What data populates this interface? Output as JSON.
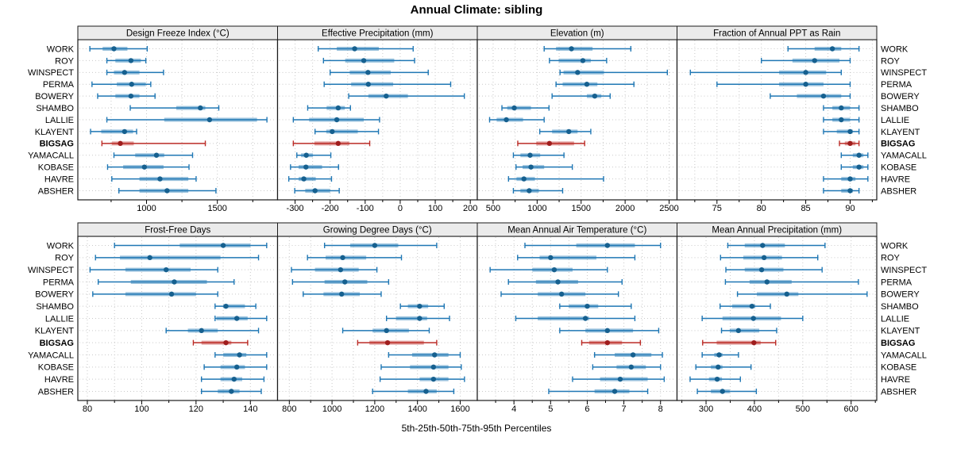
{
  "title": "Annual Climate: sibling",
  "axis_label": "5th-25th-50th-75th-95th Percentiles",
  "colors": {
    "normal": "#1f77b4",
    "normal_dot": "#16608f",
    "highlight": "#bb2b26",
    "highlight_dot": "#9f1d1d",
    "band_opacity": 0.45,
    "header_bg": "#ebebeb",
    "grid": "#c9c9c9",
    "border": "#1a1a1a"
  },
  "chart_data": {
    "type": "dotplot-percentile-trellis",
    "percentiles": [
      5,
      25,
      50,
      75,
      95
    ],
    "stations": [
      "WORK",
      "ROY",
      "WINSPECT",
      "PERMA",
      "BOWERY",
      "SHAMBO",
      "LALLIE",
      "KLAYENT",
      "BIGSAG",
      "YAMACALL",
      "KOBASE",
      "HAVRE",
      "ABSHER"
    ],
    "highlight_station": "BIGSAG",
    "layout_hints": {
      "grid": "dotted",
      "legend": "none",
      "rows": 2,
      "cols": 4
    },
    "panels": [
      {
        "title": "Design Freeze Index (°C)",
        "xmin": 515,
        "xmax": 1925,
        "major_ticks": [
          1000,
          1500
        ],
        "values": [
          [
            600,
            690,
            770,
            865,
            1005
          ],
          [
            720,
            780,
            890,
            960,
            995
          ],
          [
            720,
            770,
            845,
            950,
            1120
          ],
          [
            615,
            790,
            895,
            995,
            1030
          ],
          [
            655,
            780,
            890,
            950,
            1060
          ],
          [
            885,
            1210,
            1380,
            1415,
            1510
          ],
          [
            720,
            1125,
            1445,
            1780,
            1850
          ],
          [
            605,
            680,
            845,
            905,
            930
          ],
          [
            685,
            755,
            815,
            910,
            1415
          ],
          [
            770,
            920,
            1070,
            1125,
            1325
          ],
          [
            725,
            835,
            985,
            1120,
            1300
          ],
          [
            755,
            950,
            1095,
            1295,
            1350
          ],
          [
            805,
            950,
            1145,
            1295,
            1490
          ]
        ]
      },
      {
        "title": "Effective Precipitation (mm)",
        "xmin": -350,
        "xmax": 220,
        "major_ticks": [
          -300,
          -200,
          -100,
          0,
          100,
          200
        ],
        "values": [
          [
            -234,
            -181,
            -130,
            -61,
            37
          ],
          [
            -219,
            -157,
            -104,
            -17,
            41
          ],
          [
            -200,
            -144,
            -92,
            -27,
            80
          ],
          [
            -217,
            -140,
            -91,
            -20,
            144
          ],
          [
            -147,
            -91,
            -40,
            22,
            183
          ],
          [
            -264,
            -210,
            -177,
            -158,
            -142
          ],
          [
            -305,
            -260,
            -181,
            -104,
            -59
          ],
          [
            -243,
            -211,
            -194,
            -121,
            -62
          ],
          [
            -305,
            -245,
            -177,
            -145,
            -87
          ],
          [
            -295,
            -283,
            -268,
            -249,
            -198
          ],
          [
            -313,
            -290,
            -269,
            -223,
            -176
          ],
          [
            -318,
            -290,
            -275,
            -241,
            -196
          ],
          [
            -301,
            -271,
            -243,
            -200,
            -174
          ]
        ]
      },
      {
        "title": "Elevation (m)",
        "xmin": 320,
        "xmax": 2590,
        "major_ticks": [
          500,
          1000,
          1500,
          2000,
          2500
        ],
        "values": [
          [
            1080,
            1215,
            1390,
            1630,
            2065
          ],
          [
            1140,
            1245,
            1520,
            1610,
            1790
          ],
          [
            1260,
            1300,
            1460,
            1760,
            2480
          ],
          [
            1215,
            1290,
            1565,
            1685,
            2100
          ],
          [
            1170,
            1565,
            1655,
            1730,
            1830
          ],
          [
            600,
            660,
            740,
            930,
            1135
          ],
          [
            460,
            540,
            650,
            840,
            1080
          ],
          [
            1030,
            1170,
            1360,
            1460,
            1610
          ],
          [
            780,
            990,
            1140,
            1420,
            1540
          ],
          [
            730,
            810,
            920,
            1035,
            1305
          ],
          [
            760,
            835,
            930,
            1080,
            1400
          ],
          [
            675,
            765,
            850,
            975,
            1755
          ],
          [
            730,
            810,
            910,
            1020,
            1290
          ]
        ]
      },
      {
        "title": "Fraction of Annual PPT as Rain",
        "xmin": 70.5,
        "xmax": 93,
        "major_ticks": [
          75,
          80,
          85,
          90
        ],
        "values": [
          [
            83,
            86,
            88,
            89,
            91
          ],
          [
            80,
            83.5,
            86,
            88.8,
            90
          ],
          [
            72,
            82,
            85,
            87.3,
            89
          ],
          [
            75,
            82,
            85,
            87,
            90
          ],
          [
            81,
            84,
            87,
            89,
            90
          ],
          [
            87,
            88,
            89,
            90,
            91
          ],
          [
            87,
            88,
            89,
            90,
            91
          ],
          [
            87,
            88.5,
            90,
            90.3,
            91
          ],
          [
            88.8,
            89.4,
            90,
            90.6,
            91
          ],
          [
            89,
            90.3,
            91,
            91.5,
            92
          ],
          [
            89,
            90.3,
            91,
            91.5,
            92
          ],
          [
            87,
            89,
            90,
            90.6,
            92
          ],
          [
            87,
            89,
            90,
            90.3,
            91
          ]
        ]
      },
      {
        "title": "Frost-Free Days",
        "xmin": 76.5,
        "xmax": 150,
        "major_ticks": [
          80,
          100,
          120,
          140
        ],
        "values": [
          [
            90,
            114,
            130,
            140,
            146
          ],
          [
            83,
            92,
            103,
            129,
            143
          ],
          [
            81,
            94,
            109,
            118,
            128
          ],
          [
            84,
            96,
            112,
            124,
            134
          ],
          [
            82,
            94,
            111,
            120,
            128
          ],
          [
            127,
            130,
            131,
            138,
            142
          ],
          [
            127,
            127.5,
            135,
            139,
            146
          ],
          [
            109,
            117,
            122,
            128,
            143
          ],
          [
            119,
            122,
            131,
            133,
            139
          ],
          [
            127,
            130,
            136,
            138.5,
            146
          ],
          [
            123,
            129,
            135,
            138,
            146
          ],
          [
            122,
            129,
            134,
            137,
            145
          ],
          [
            122,
            128,
            133,
            136,
            144
          ]
        ]
      },
      {
        "title": "Growing Degree Days (°C)",
        "xmin": 745,
        "xmax": 1680,
        "major_ticks": [
          800,
          1000,
          1200,
          1400,
          1600
        ],
        "values": [
          [
            965,
            1085,
            1200,
            1310,
            1490
          ],
          [
            885,
            970,
            1050,
            1160,
            1325
          ],
          [
            810,
            920,
            1040,
            1125,
            1210
          ],
          [
            815,
            965,
            1060,
            1165,
            1265
          ],
          [
            865,
            960,
            1045,
            1130,
            1230
          ],
          [
            1320,
            1355,
            1410,
            1450,
            1525
          ],
          [
            1255,
            1300,
            1410,
            1445,
            1550
          ],
          [
            1050,
            1190,
            1255,
            1360,
            1455
          ],
          [
            1120,
            1175,
            1260,
            1430,
            1490
          ],
          [
            1265,
            1375,
            1480,
            1545,
            1600
          ],
          [
            1230,
            1365,
            1475,
            1545,
            1605
          ],
          [
            1225,
            1410,
            1475,
            1545,
            1620
          ],
          [
            1190,
            1355,
            1440,
            1490,
            1570
          ]
        ]
      },
      {
        "title": "Mean Annual Air Temperature (°C)",
        "xmin": 3.0,
        "xmax": 8.45,
        "major_ticks": [
          4,
          5,
          6,
          7,
          8
        ],
        "values": [
          [
            4.3,
            5.7,
            6.55,
            7.3,
            8.0
          ],
          [
            4.1,
            4.7,
            5.0,
            6.25,
            7.3
          ],
          [
            3.35,
            4.5,
            5.1,
            5.6,
            6.55
          ],
          [
            3.85,
            4.6,
            5.2,
            5.75,
            6.95
          ],
          [
            3.65,
            4.65,
            5.3,
            5.95,
            6.85
          ],
          [
            5.25,
            5.5,
            6.0,
            6.3,
            7.2
          ],
          [
            4.05,
            4.65,
            5.95,
            6.05,
            7.3
          ],
          [
            5.25,
            5.95,
            6.55,
            7.25,
            7.95
          ],
          [
            5.85,
            6.05,
            6.55,
            6.95,
            7.45
          ],
          [
            6.2,
            6.75,
            7.25,
            7.75,
            8.05
          ],
          [
            6.15,
            6.8,
            7.2,
            7.6,
            8.0
          ],
          [
            5.6,
            6.35,
            6.9,
            7.65,
            8.1
          ],
          [
            4.95,
            6.2,
            6.75,
            7.15,
            7.65
          ]
        ]
      },
      {
        "title": "Mean Annual Precipitation (mm)",
        "xmin": 240,
        "xmax": 653,
        "major_ticks": [
          300,
          400,
          500,
          600
        ],
        "values": [
          [
            345,
            380,
            417,
            463,
            546
          ],
          [
            330,
            377,
            420,
            457,
            531
          ],
          [
            341,
            380,
            415,
            460,
            540
          ],
          [
            340,
            390,
            426,
            477,
            615
          ],
          [
            365,
            405,
            467,
            491,
            633
          ],
          [
            329,
            354,
            395,
            402,
            433
          ],
          [
            292,
            334,
            398,
            455,
            500
          ],
          [
            332,
            349,
            367,
            410,
            446
          ],
          [
            293,
            322,
            399,
            413,
            444
          ],
          [
            292,
            317,
            327,
            334,
            367
          ],
          [
            279,
            310,
            325,
            334,
            393
          ],
          [
            267,
            306,
            323,
            333,
            371
          ],
          [
            282,
            310,
            334,
            349,
            404
          ]
        ]
      }
    ]
  }
}
